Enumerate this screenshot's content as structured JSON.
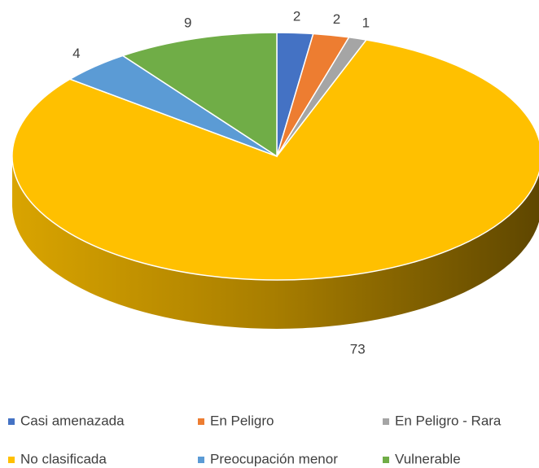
{
  "chart_data": {
    "type": "pie3d",
    "categories": [
      "Casi amenazada",
      "En Peligro",
      "En Peligro - Rara",
      "No clasificada",
      "Preocupación menor",
      "Vulnerable"
    ],
    "values": [
      2,
      2,
      1,
      73,
      4,
      9
    ],
    "colors": [
      "#4472c4",
      "#ed7d31",
      "#a5a5a5",
      "#ffc000",
      "#5b9bd5",
      "#70ad47"
    ],
    "legend": "bottom"
  }
}
